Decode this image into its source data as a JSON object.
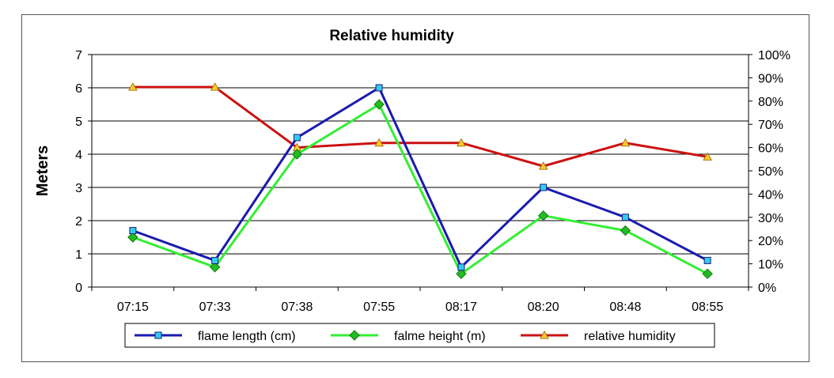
{
  "chart_data": {
    "type": "line",
    "title": "Relative humidity",
    "ylabel": "Meters",
    "categories": [
      "07:15",
      "07:33",
      "07:38",
      "07:55",
      "08:17",
      "08:20",
      "08:48",
      "08:55"
    ],
    "y_left": {
      "min": 0,
      "max": 7,
      "ticks": [
        "0",
        "1",
        "2",
        "3",
        "4",
        "5",
        "6",
        "7"
      ]
    },
    "y_right": {
      "min": 0,
      "max": 100,
      "ticks": [
        "0%",
        "10%",
        "20%",
        "30%",
        "40%",
        "50%",
        "60%",
        "70%",
        "80%",
        "90%",
        "100%"
      ]
    },
    "grid": true,
    "legend_position": "bottom",
    "series": [
      {
        "name": "flame length (cm)",
        "axis": "left",
        "color": "#1a1ab0",
        "marker": "square",
        "marker_color": "#33ccee",
        "values": [
          1.7,
          0.8,
          4.5,
          6.0,
          0.6,
          3.0,
          2.1,
          0.8
        ]
      },
      {
        "name": "falme height (m)",
        "axis": "left",
        "color": "#33ee33",
        "marker": "diamond",
        "marker_color": "#22bb22",
        "values": [
          1.5,
          0.6,
          4.0,
          5.5,
          0.4,
          2.15,
          1.7,
          0.4
        ]
      },
      {
        "name": "relative humidity",
        "axis": "right",
        "color": "#cc1111",
        "marker": "triangle",
        "marker_color": "#ffcc33",
        "values": [
          86,
          86,
          60,
          62,
          62,
          52,
          62,
          56
        ]
      }
    ]
  }
}
